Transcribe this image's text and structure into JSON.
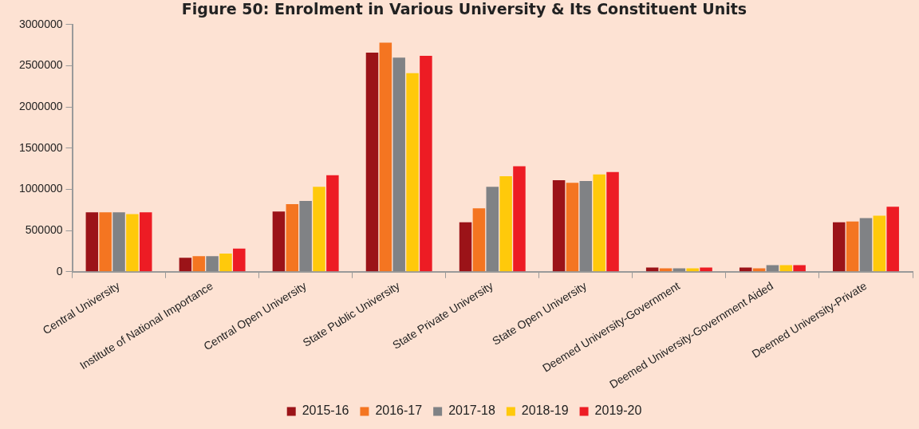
{
  "chart_data": {
    "type": "bar",
    "title": "Figure 50: Enrolment in Various University & Its Constituent Units",
    "categories": [
      "Central University",
      "Institute of National Importance",
      "Central Open University",
      "State Public University",
      "State Private University",
      "State Open University",
      "Deemed University-Government",
      "Deemed University-Government Aided",
      "Deemed University-Private"
    ],
    "series": [
      {
        "name": "2015-16",
        "color": "#9b1318",
        "values": [
          720000,
          170000,
          730000,
          2660000,
          600000,
          1110000,
          50000,
          50000,
          600000
        ]
      },
      {
        "name": "2016-17",
        "color": "#f47521",
        "values": [
          720000,
          190000,
          820000,
          2780000,
          770000,
          1080000,
          40000,
          40000,
          610000
        ]
      },
      {
        "name": "2017-18",
        "color": "#808285",
        "values": [
          720000,
          190000,
          860000,
          2600000,
          1030000,
          1100000,
          40000,
          80000,
          650000
        ]
      },
      {
        "name": "2018-19",
        "color": "#ffc90b",
        "values": [
          700000,
          220000,
          1030000,
          2410000,
          1160000,
          1180000,
          40000,
          80000,
          680000
        ]
      },
      {
        "name": "2019-20",
        "color": "#ed1c24",
        "values": [
          720000,
          280000,
          1170000,
          2620000,
          1280000,
          1210000,
          50000,
          80000,
          790000
        ]
      }
    ],
    "ylim": [
      0,
      3000000
    ],
    "yticks": [
      0,
      500000,
      1000000,
      1500000,
      2000000,
      2500000,
      3000000
    ],
    "grid": false,
    "legend": "bottom"
  }
}
